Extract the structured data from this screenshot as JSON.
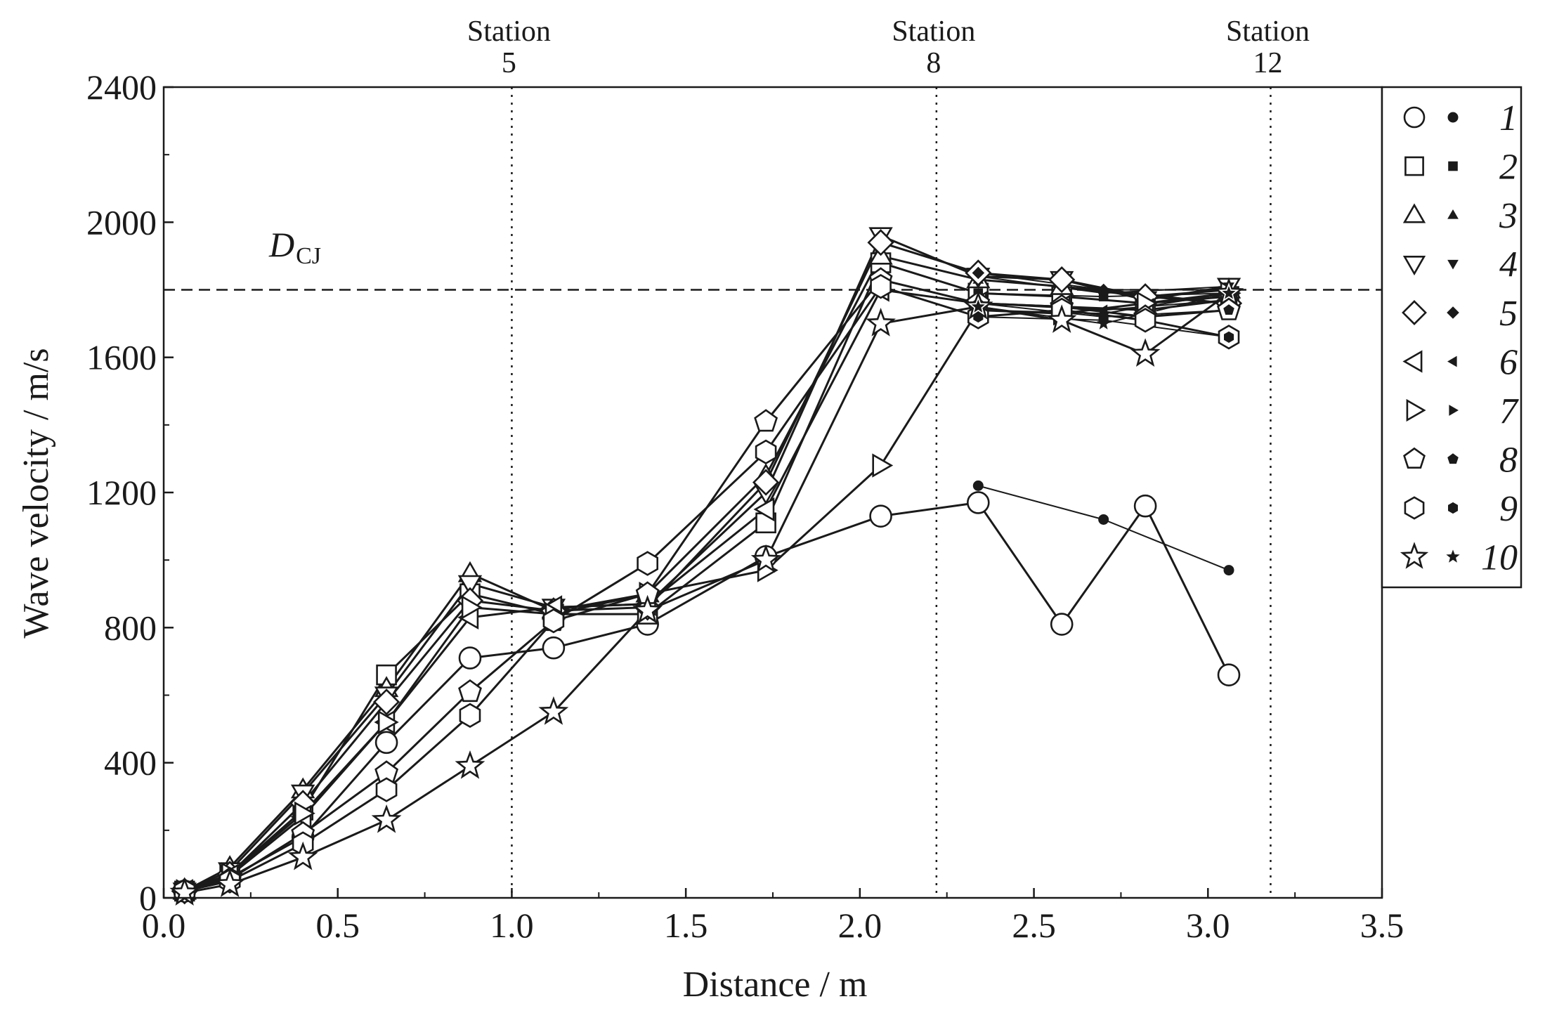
{
  "chart_data": {
    "type": "line",
    "xlabel": "Distance / m",
    "ylabel": "Wave velocity / m/s",
    "xlim": [
      0,
      3.5
    ],
    "ylim": [
      0,
      2400
    ],
    "xticks": [
      "0.0",
      "0.5",
      "1.0",
      "1.5",
      "2.0",
      "2.5",
      "3.0",
      "3.5"
    ],
    "yticks": [
      "0",
      "400",
      "800",
      "1200",
      "1600",
      "2000",
      "2400"
    ],
    "grid": false,
    "reference_line": {
      "label": "D",
      "subscript": "CJ",
      "value": 1800
    },
    "stations": [
      {
        "word": "Station",
        "number": "5",
        "x": 1.0
      },
      {
        "word": "Station",
        "number": "8",
        "x": 2.22
      },
      {
        "word": "Station",
        "number": "12",
        "x": 3.18
      }
    ],
    "legend_position": "right",
    "series": [
      {
        "name": "1",
        "marker": "circle",
        "open_x": [
          0.06,
          0.19,
          0.4,
          0.64,
          0.88,
          1.12,
          1.39,
          1.73,
          2.06,
          2.34,
          2.58,
          2.82,
          3.06
        ],
        "open_y": [
          20,
          60,
          180,
          460,
          710,
          740,
          810,
          1010,
          1130,
          1170,
          810,
          1160,
          660
        ],
        "filled_x": [
          2.34,
          2.7,
          3.06
        ],
        "filled_y": [
          1220,
          1120,
          970
        ]
      },
      {
        "name": "2",
        "marker": "square",
        "open_x": [
          0.06,
          0.19,
          0.4,
          0.64,
          0.88,
          1.12,
          1.39,
          1.73,
          2.06,
          2.34,
          2.58,
          2.82,
          3.06
        ],
        "open_y": [
          20,
          70,
          260,
          660,
          900,
          840,
          840,
          1110,
          1880,
          1790,
          1780,
          1760,
          1780
        ],
        "filled_x": [
          2.34,
          2.7,
          3.06
        ],
        "filled_y": [
          1790,
          1780,
          1790
        ]
      },
      {
        "name": "3",
        "marker": "triangle-up",
        "open_x": [
          0.06,
          0.19,
          0.4,
          0.64,
          0.88,
          1.12,
          1.39,
          1.73,
          2.06,
          2.34,
          2.58,
          2.82,
          3.06
        ],
        "open_y": [
          20,
          90,
          320,
          620,
          960,
          850,
          900,
          1250,
          1900,
          1830,
          1810,
          1780,
          1800
        ],
        "filled_x": [
          2.34,
          2.7,
          3.06
        ],
        "filled_y": [
          1830,
          1800,
          1800
        ]
      },
      {
        "name": "4",
        "marker": "triangle-down",
        "open_x": [
          0.06,
          0.19,
          0.4,
          0.64,
          0.88,
          1.12,
          1.39,
          1.73,
          2.06,
          2.34,
          2.58,
          2.82,
          3.06
        ],
        "open_y": [
          20,
          80,
          310,
          600,
          930,
          860,
          870,
          1200,
          1960,
          1840,
          1830,
          1770,
          1810
        ],
        "filled_x": [
          2.34,
          2.7,
          3.06
        ],
        "filled_y": [
          1840,
          1790,
          1810
        ]
      },
      {
        "name": "5",
        "marker": "diamond",
        "open_x": [
          0.06,
          0.19,
          0.4,
          0.64,
          0.88,
          1.12,
          1.39,
          1.73,
          2.06,
          2.34,
          2.58,
          2.82,
          3.06
        ],
        "open_y": [
          20,
          70,
          280,
          580,
          880,
          850,
          860,
          1230,
          1940,
          1850,
          1830,
          1780,
          1760
        ],
        "filled_x": [
          2.34,
          2.7,
          3.06
        ],
        "filled_y": [
          1850,
          1800,
          1760
        ]
      },
      {
        "name": "6",
        "marker": "triangle-left",
        "open_x": [
          0.06,
          0.19,
          0.4,
          0.64,
          0.88,
          1.12,
          1.39,
          1.73,
          2.06,
          2.34,
          2.58,
          2.82,
          3.06
        ],
        "open_y": [
          20,
          65,
          240,
          520,
          830,
          860,
          870,
          1150,
          1800,
          1760,
          1750,
          1740,
          1770
        ],
        "filled_x": [
          2.34,
          2.7,
          3.06
        ],
        "filled_y": [
          1760,
          1740,
          1770
        ]
      },
      {
        "name": "7",
        "marker": "triangle-right",
        "open_x": [
          0.06,
          0.19,
          0.4,
          0.64,
          0.88,
          1.12,
          1.39,
          1.73,
          2.06,
          2.34,
          2.58,
          2.82,
          3.06
        ],
        "open_y": [
          20,
          70,
          250,
          520,
          860,
          840,
          900,
          970,
          1280,
          1740,
          1730,
          1760,
          1790
        ],
        "filled_x": [
          2.34,
          2.7,
          3.06
        ],
        "filled_y": [
          1740,
          1730,
          1790
        ]
      },
      {
        "name": "8",
        "marker": "pentagon",
        "open_x": [
          0.06,
          0.19,
          0.4,
          0.64,
          0.88,
          1.12,
          1.39,
          1.73,
          2.06,
          2.34,
          2.58,
          2.82,
          3.06
        ],
        "open_y": [
          20,
          55,
          190,
          370,
          610,
          820,
          900,
          1410,
          1830,
          1760,
          1750,
          1720,
          1740
        ],
        "filled_x": [
          2.34,
          2.7,
          3.06
        ],
        "filled_y": [
          1760,
          1720,
          1740
        ]
      },
      {
        "name": "9",
        "marker": "hexagon",
        "open_x": [
          0.06,
          0.19,
          0.4,
          0.64,
          0.88,
          1.12,
          1.39,
          1.73,
          2.06,
          2.34,
          2.58,
          2.82,
          3.06
        ],
        "open_y": [
          20,
          50,
          160,
          320,
          540,
          820,
          990,
          1320,
          1810,
          1720,
          1740,
          1710,
          1660
        ],
        "filled_x": [
          2.34,
          2.7,
          3.06
        ],
        "filled_y": [
          1720,
          1710,
          1660
        ]
      },
      {
        "name": "10",
        "marker": "star",
        "open_x": [
          0.06,
          0.19,
          0.4,
          0.64,
          0.88,
          1.12,
          1.39,
          1.73,
          2.06,
          2.34,
          2.58,
          2.82,
          3.06
        ],
        "open_y": [
          15,
          40,
          120,
          230,
          390,
          550,
          850,
          1000,
          1700,
          1750,
          1710,
          1610,
          1790
        ],
        "filled_x": [
          2.34,
          2.7,
          3.06
        ],
        "filled_y": [
          1750,
          1700,
          1790
        ]
      }
    ]
  }
}
